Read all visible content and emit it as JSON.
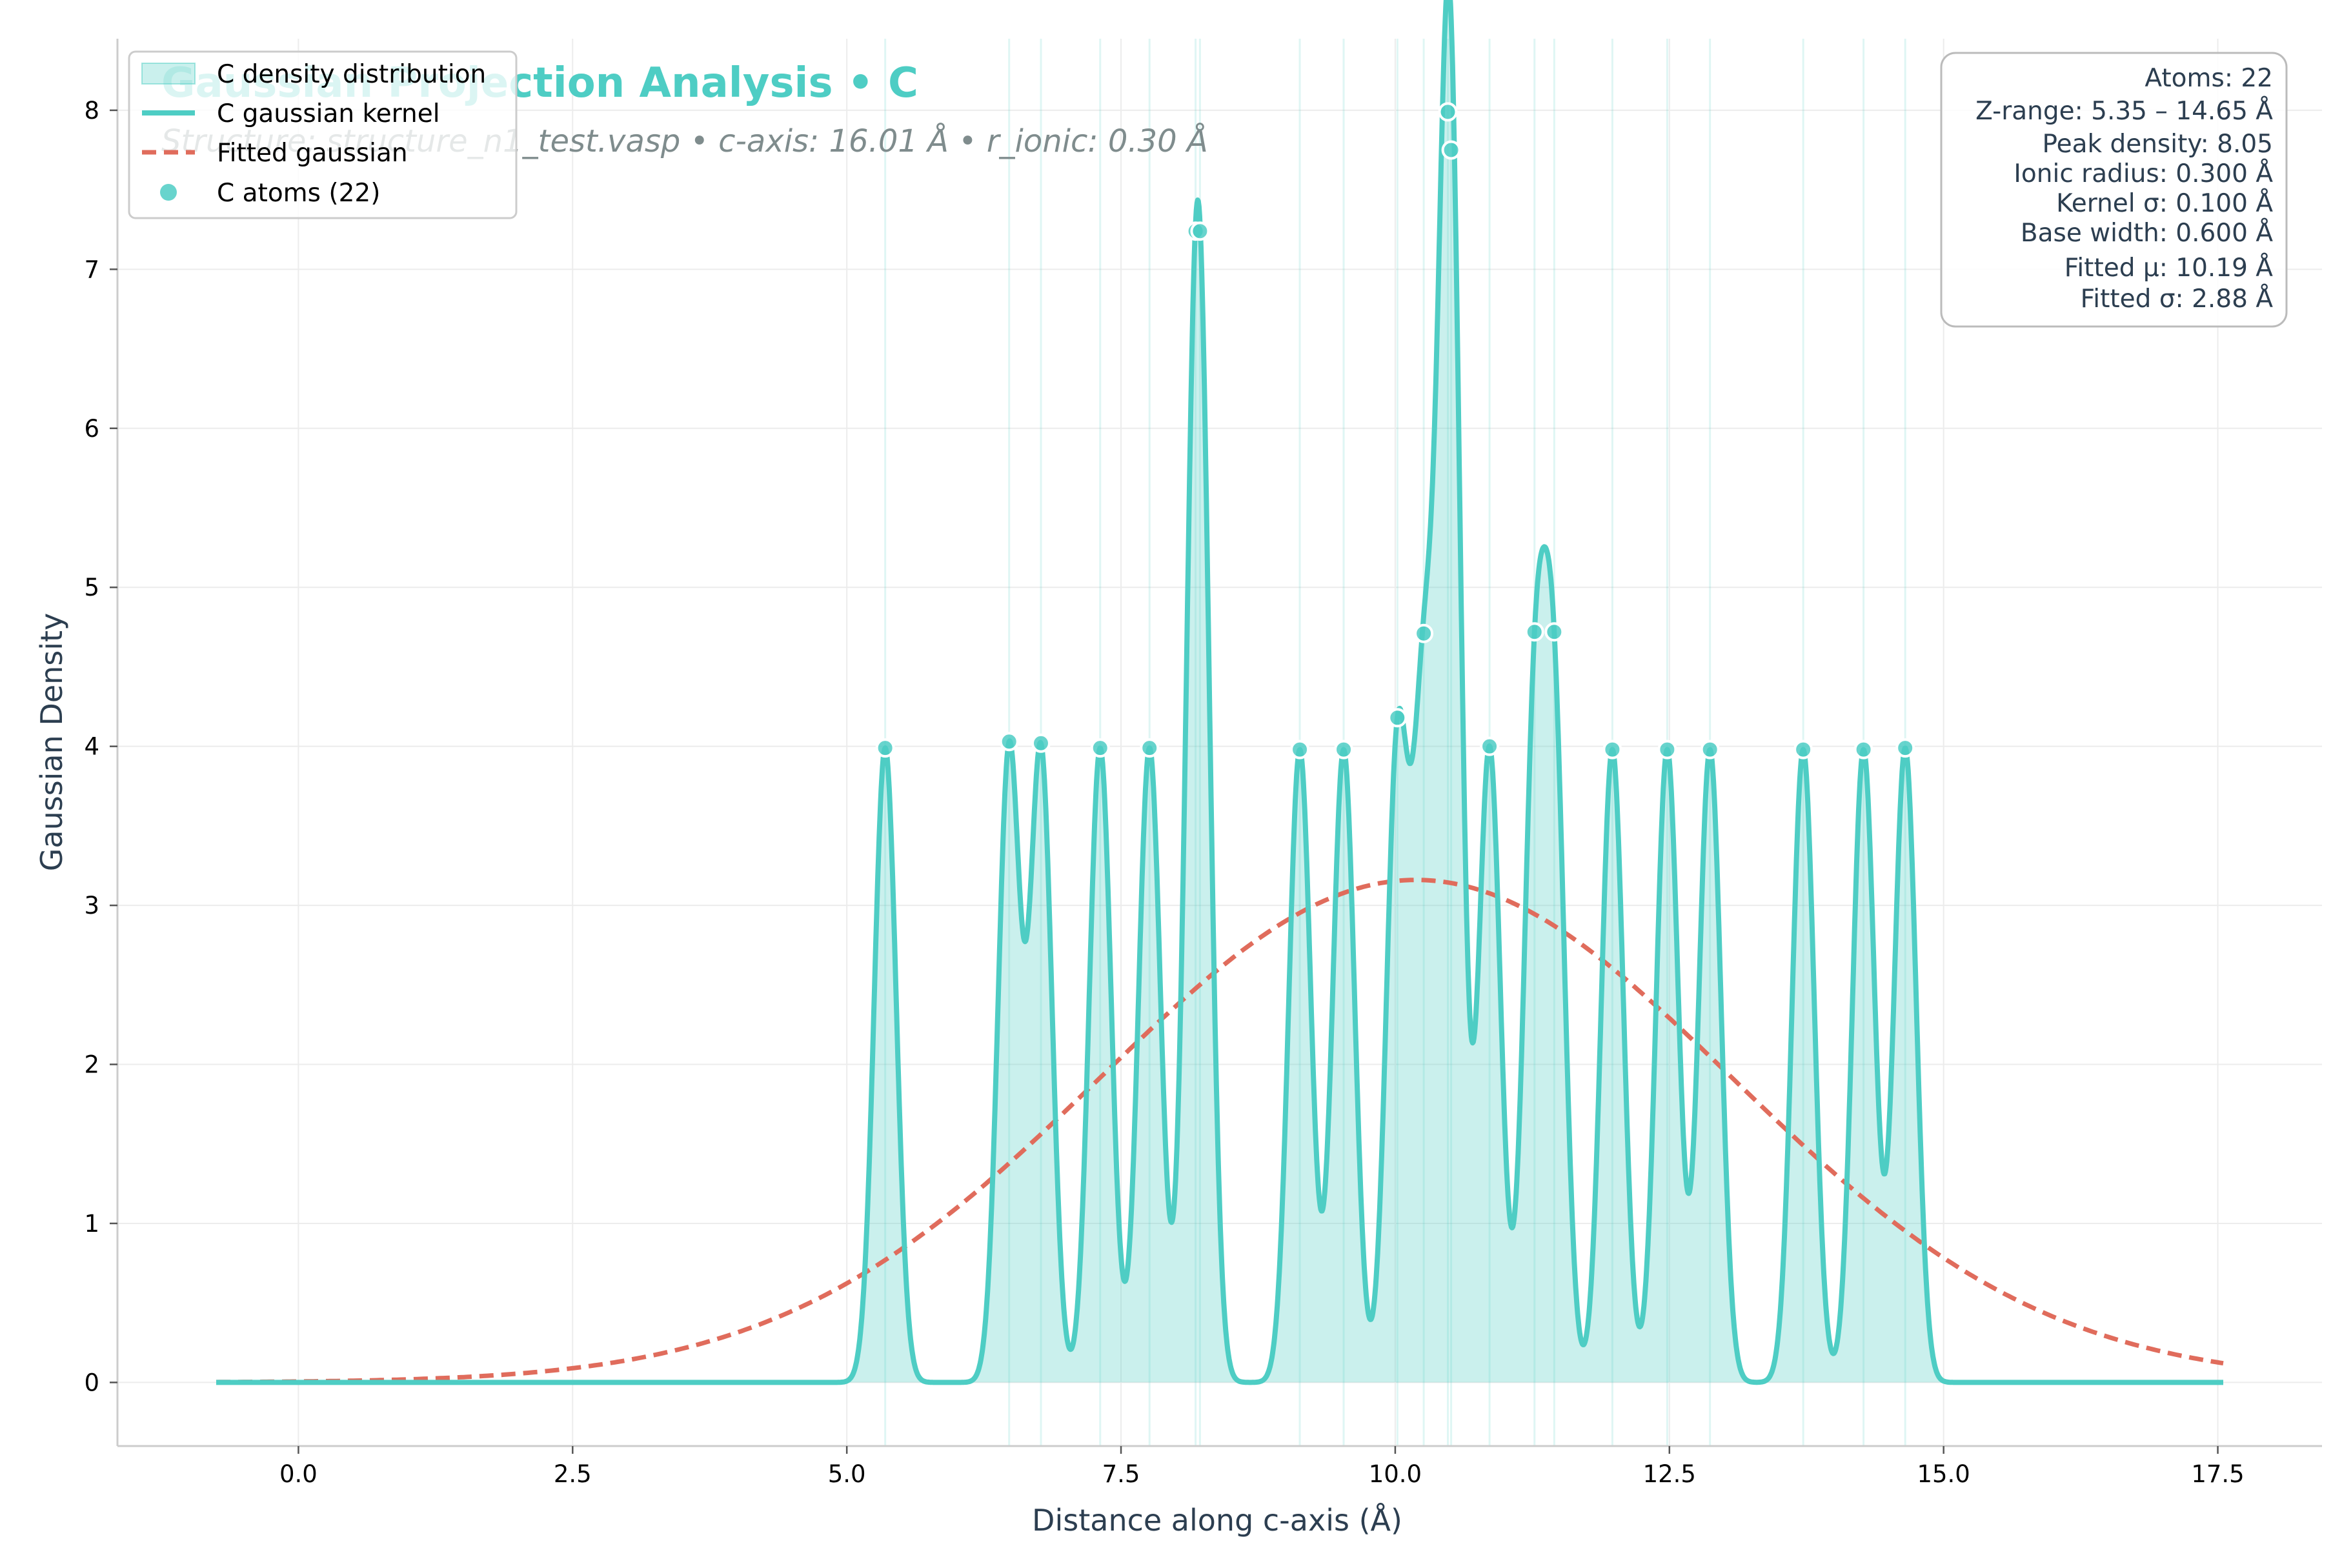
{
  "chart_data": {
    "type": "area",
    "title": "Gaussian Projection Analysis • C",
    "subtitle": "Structure: structure_n1_test.vasp • c-axis: 16.01 Å • r_ionic: 0.30 Å",
    "xlabel": "Distance along c-axis (Å)",
    "ylabel": "Gaussian Density",
    "xlim": [
      -1.65,
      18.45
    ],
    "ylim": [
      -0.4,
      8.45
    ],
    "x_ticks": [
      0.0,
      2.5,
      5.0,
      7.5,
      10.0,
      12.5,
      15.0,
      17.5
    ],
    "x_tick_labels": [
      "0.0",
      "2.5",
      "5.0",
      "7.5",
      "10.0",
      "12.5",
      "15.0",
      "17.5"
    ],
    "y_ticks": [
      0,
      1,
      2,
      3,
      4,
      5,
      6,
      7,
      8
    ],
    "y_tick_labels": [
      "0",
      "1",
      "2",
      "3",
      "4",
      "5",
      "6",
      "7",
      "8"
    ],
    "grid": true,
    "legend_position": "top-left",
    "x_range": [
      -0.75,
      17.55
    ],
    "kernel_sigma": 0.1,
    "atom_positions": [
      5.35,
      6.48,
      6.77,
      7.31,
      7.76,
      8.18,
      8.22,
      9.13,
      9.53,
      10.02,
      10.26,
      10.48,
      10.51,
      10.86,
      11.27,
      11.45,
      11.98,
      12.48,
      12.87,
      13.72,
      14.27,
      14.65
    ],
    "atom_densities": [
      3.99,
      4.03,
      4.02,
      3.99,
      3.99,
      7.24,
      7.24,
      3.98,
      3.98,
      4.18,
      4.71,
      7.99,
      7.75,
      4.0,
      4.72,
      4.72,
      3.98,
      3.98,
      3.98,
      3.98,
      3.98,
      3.99
    ],
    "fitted": {
      "mu": 10.19,
      "sigma": 2.88,
      "amplitude": 3.16
    },
    "series": [
      {
        "name": "C density distribution",
        "kind": "area",
        "color": "#4ecdc4"
      },
      {
        "name": "C gaussian kernel",
        "kind": "line",
        "color": "#4ecdc4"
      },
      {
        "name": "Fitted gaussian",
        "kind": "dashed-line",
        "color": "#e06c5c"
      },
      {
        "name": "C atoms (22)",
        "kind": "scatter",
        "color": "#4ecdc4"
      }
    ],
    "stats": [
      "Atoms: 22",
      "Z-range: 5.35 – 14.65 Å",
      "Peak density: 8.05",
      "Ionic radius: 0.300 Å",
      "Kernel σ: 0.100 Å",
      "Base width: 0.600 Å",
      "Fitted μ: 10.19 Å",
      "Fitted σ: 2.88 Å"
    ]
  }
}
